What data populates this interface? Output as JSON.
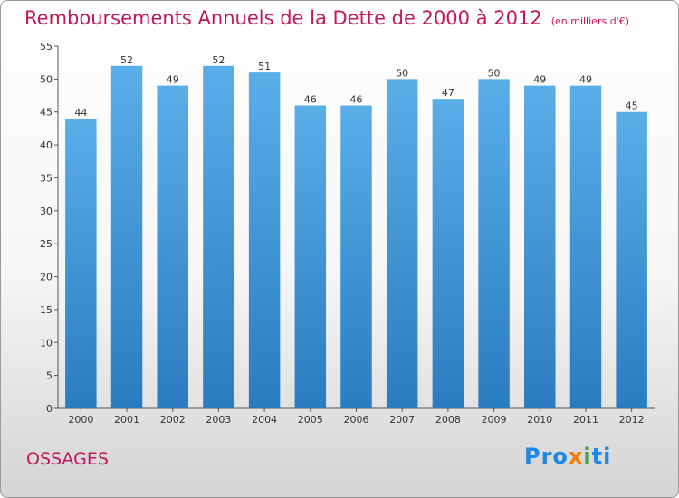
{
  "title": "Remboursements Annuels de la Dette de 2000 à 2012",
  "unit_note": "(en milliers d'€)",
  "commune": "OSSAGES",
  "logo": {
    "p1": "Pro",
    "p2": "x",
    "p3": "i",
    "p4": "ti"
  },
  "colors": {
    "bar_top": "#5aaee8",
    "bar_bottom": "#2a7cc0",
    "title": "#c2185b"
  },
  "chart_data": {
    "type": "bar",
    "categories": [
      "2000",
      "2001",
      "2002",
      "2003",
      "2004",
      "2005",
      "2006",
      "2007",
      "2008",
      "2009",
      "2010",
      "2011",
      "2012"
    ],
    "values": [
      44,
      52,
      49,
      52,
      51,
      46,
      46,
      50,
      47,
      50,
      49,
      49,
      45
    ],
    "ylim": [
      0,
      55
    ],
    "yticks": [
      0,
      5,
      10,
      15,
      20,
      25,
      30,
      35,
      40,
      45,
      50,
      55
    ],
    "grid": false,
    "show_value_labels": true
  }
}
